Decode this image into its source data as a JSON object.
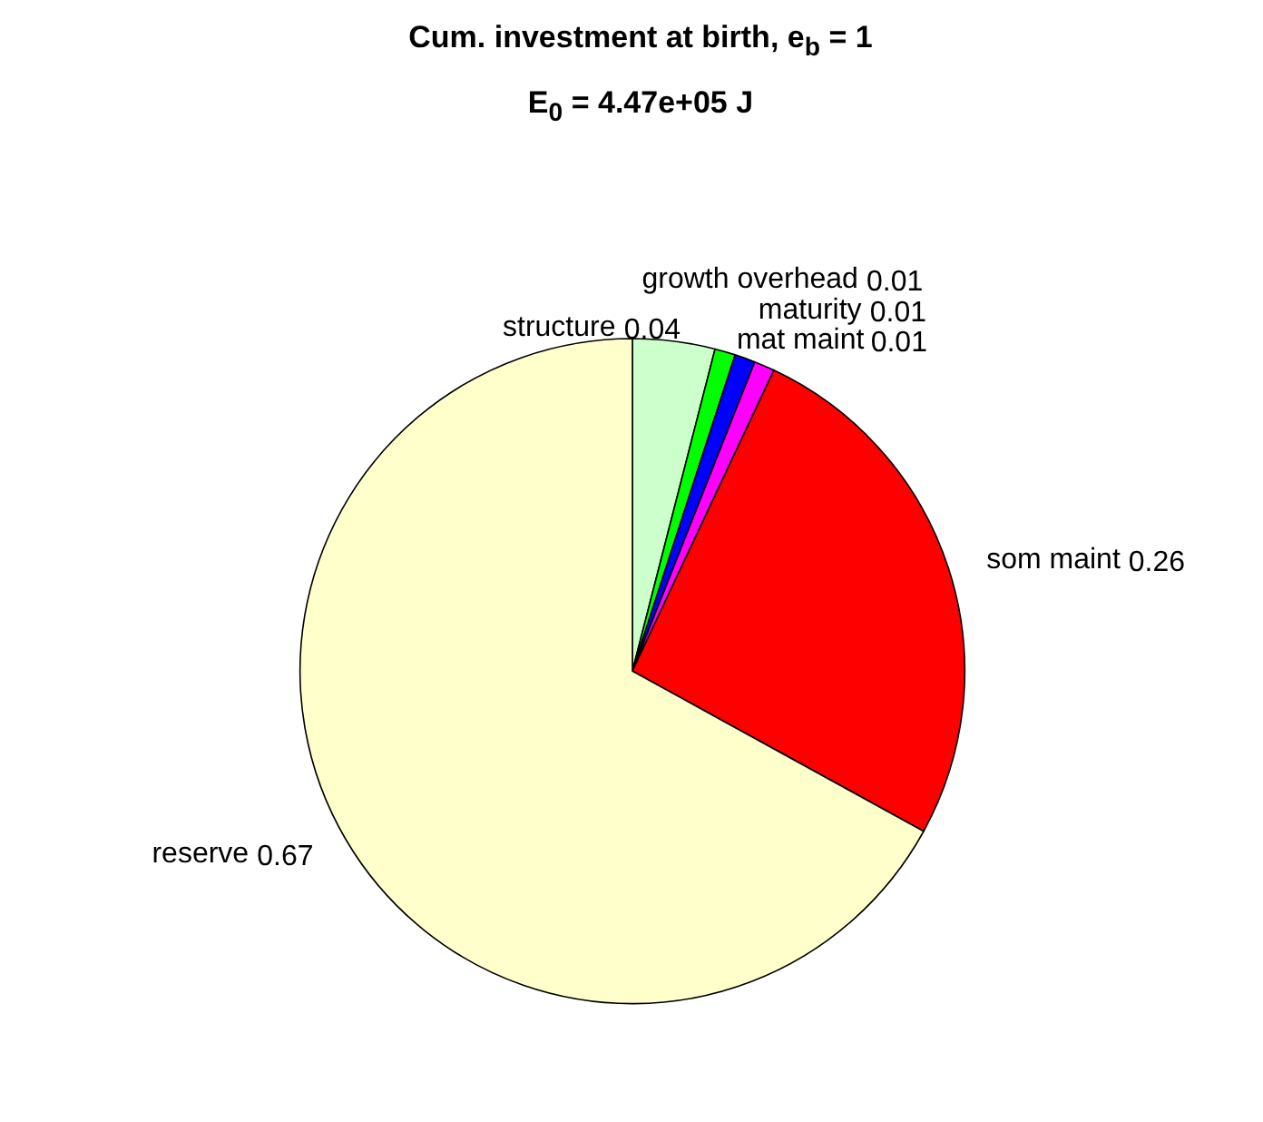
{
  "chart_data": {
    "type": "pie",
    "title": "Cum. investment at birth, e$_{b}$ = 1",
    "subtitle": "E$_{0}$ = 4.47e+05 J",
    "categories": [
      "structure",
      "growth overhead",
      "maturity",
      "mat maint",
      "som maint",
      "reserve"
    ],
    "values": [
      0.04,
      0.01,
      0.01,
      0.01,
      0.26,
      0.67
    ],
    "colors": [
      "#ccffcc",
      "#00ff00",
      "#0000ff",
      "#ff00ff",
      "#ff0000",
      "#ffffcc"
    ],
    "data_labels": true,
    "legend": false
  }
}
